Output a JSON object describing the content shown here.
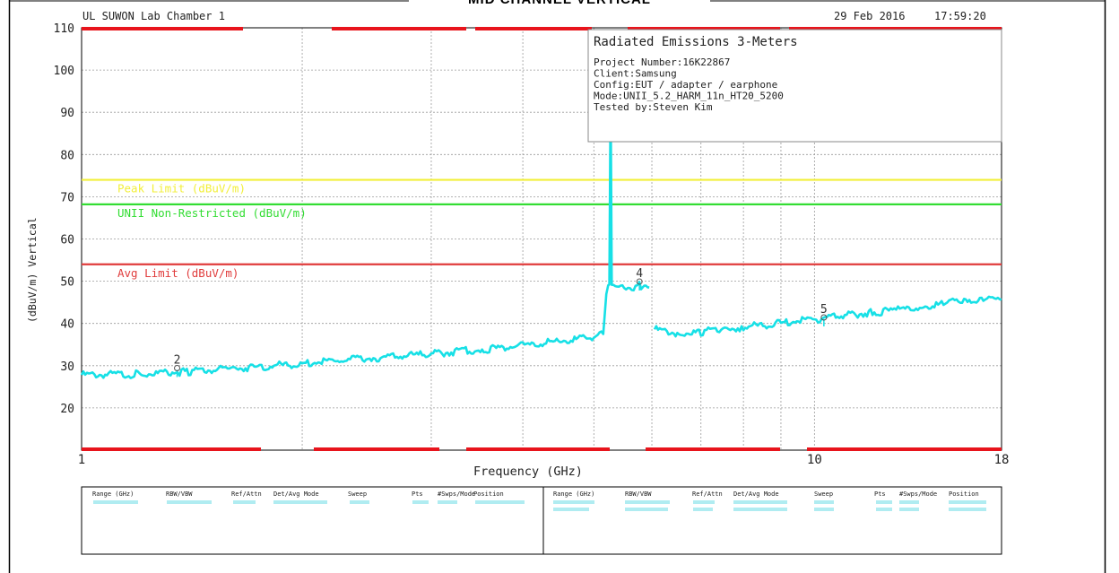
{
  "page_title": "MID CHANNEL VERTICAL",
  "header": {
    "lab": "UL SUWON Lab Chamber 1",
    "date": "29 Feb 2016",
    "time": "17:59:20"
  },
  "info_box": {
    "title": "Radiated Emissions 3-Meters",
    "lines": [
      "Project Number:16K22867",
      "Client:Samsung",
      "Config:EUT / adapter / earphone",
      "Mode:UNII_5.2_HARM_11n_HT20_5200",
      "Tested by:Steven Kim"
    ]
  },
  "chart_data": {
    "type": "line",
    "title": "Radiated Emissions 3-Meters",
    "xlabel": "Frequency (GHz)",
    "ylabel": "(dBuV/m) Vertical",
    "x_scale": "log",
    "xlim": [
      1,
      18
    ],
    "ylim": [
      10,
      110
    ],
    "x_tick_labels": [
      {
        "value": 1,
        "label": "1"
      },
      {
        "value": 10,
        "label": "10"
      },
      {
        "value": 18,
        "label": "18"
      }
    ],
    "x_gridlines": [
      2,
      3,
      4,
      5,
      6,
      7,
      8,
      9,
      10
    ],
    "y_ticks": [
      20,
      30,
      40,
      50,
      60,
      70,
      80,
      90,
      100,
      110
    ],
    "grid": true,
    "limit_lines": [
      {
        "name": "Peak Limit (dBuV/m)",
        "value": 74,
        "color": "#f2ef3a"
      },
      {
        "name": "UNII Non-Restricted (dBuV/m)",
        "value": 68.2,
        "color": "#33dd33"
      },
      {
        "name": "Avg Limit (dBuV/m)",
        "value": 54,
        "color": "#e03c3c"
      }
    ],
    "markers": [
      {
        "label": "2",
        "x": 1.35,
        "y": 29
      },
      {
        "label": "4",
        "x": 5.77,
        "y": 49.5
      },
      {
        "label": "5",
        "x": 10.3,
        "y": 41
      }
    ],
    "series": [
      {
        "color": "#17e0e6",
        "segments": [
          [
            [
              1.0,
              27.8
            ],
            [
              1.2,
              28.0
            ],
            [
              1.4,
              28.6
            ],
            [
              1.6,
              29.3
            ],
            [
              1.8,
              29.9
            ],
            [
              2.0,
              30.5
            ],
            [
              2.5,
              31.8
            ],
            [
              3.0,
              32.8
            ],
            [
              3.5,
              33.8
            ],
            [
              4.0,
              34.7
            ],
            [
              4.5,
              35.8
            ],
            [
              5.0,
              36.8
            ],
            [
              5.15,
              37.5
            ],
            [
              5.2,
              47.6
            ],
            [
              5.23,
              48.6
            ],
            [
              5.25,
              49.2
            ],
            [
              5.27,
              95
            ],
            [
              5.29,
              49.4
            ],
            [
              5.32,
              48.4
            ],
            [
              5.5,
              48.5
            ],
            [
              5.7,
              48.7
            ],
            [
              5.77,
              49.2
            ],
            [
              5.8,
              48.7
            ],
            [
              5.95,
              48.5
            ]
          ],
          [
            [
              6.05,
              38.6
            ],
            [
              6.5,
              37.6
            ],
            [
              7.0,
              38.0
            ],
            [
              7.5,
              38.6
            ],
            [
              8.0,
              39.1
            ],
            [
              9.0,
              40.1
            ],
            [
              10.0,
              41.0
            ],
            [
              11.0,
              41.9
            ],
            [
              12.0,
              42.6
            ],
            [
              13.0,
              43.2
            ],
            [
              14.0,
              43.9
            ],
            [
              15.0,
              44.6
            ],
            [
              16.0,
              45.4
            ],
            [
              17.0,
              46.0
            ],
            [
              18.0,
              45.6
            ]
          ]
        ]
      }
    ]
  },
  "settings_table": {
    "headers": [
      "Range (GHz)",
      "RBW/VBW",
      "Ref/Attn",
      "Det/Avg Mode",
      "Sweep",
      "Pts",
      "#Swps/Mode",
      "Position"
    ]
  }
}
